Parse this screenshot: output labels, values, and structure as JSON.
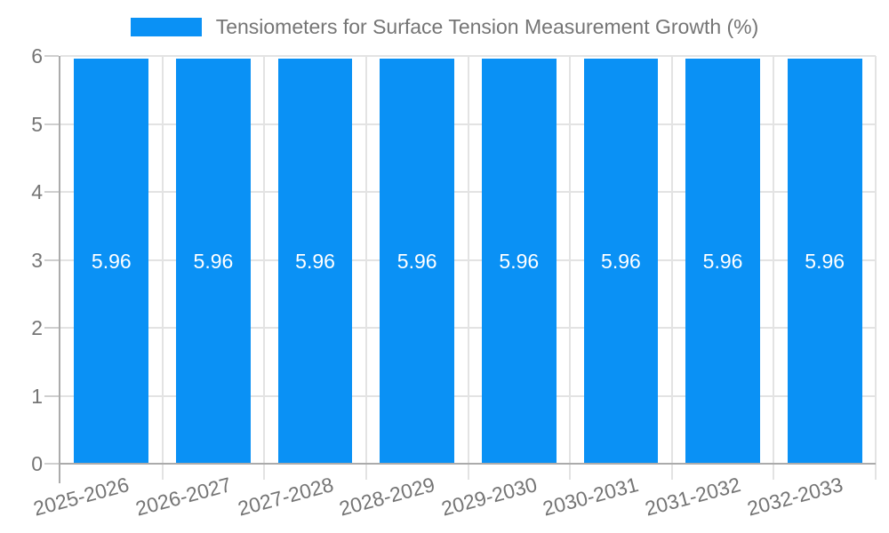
{
  "chart_data": {
    "type": "bar",
    "title": "Tensiometers for Surface Tension Measurement Growth (%)",
    "categories": [
      "2025-2026",
      "2026-2027",
      "2027-2028",
      "2028-2029",
      "2029-2030",
      "2030-2031",
      "2031-2032",
      "2032-2033"
    ],
    "values": [
      5.96,
      5.96,
      5.96,
      5.96,
      5.96,
      5.96,
      5.96,
      5.96
    ],
    "value_labels": [
      "5.96",
      "5.96",
      "5.96",
      "5.96",
      "5.96",
      "5.96",
      "5.96",
      "5.96"
    ],
    "xlabel": "",
    "ylabel": "",
    "ylim": [
      0,
      6
    ],
    "y_ticks": [
      0,
      1,
      2,
      3,
      4,
      5,
      6
    ],
    "grid": true,
    "legend_position": "top-center",
    "x_label_rotation_deg": -15,
    "colors": {
      "bar": "#0A91F5",
      "gridline": "#E3E3E3",
      "tick": "#CFCFCF",
      "axis_line": "#ABABAB",
      "axis_text": "#757575",
      "value_label_text": "#FFFFFF",
      "background": "#FFFFFF"
    }
  }
}
